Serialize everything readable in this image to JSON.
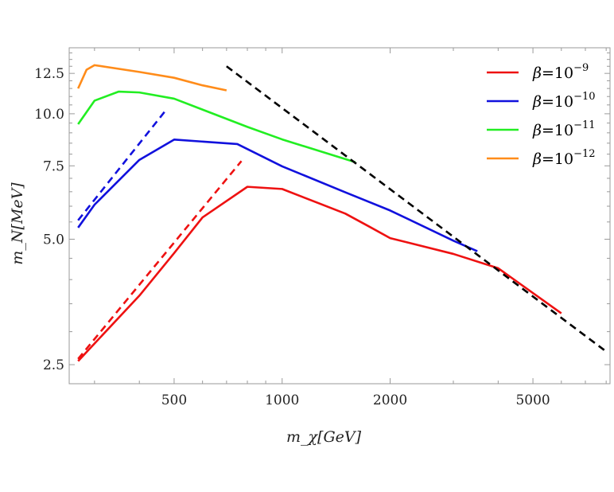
{
  "chart_data": {
    "type": "line",
    "title": "",
    "xlabel": "m_χ[GeV]",
    "ylabel": "m_N[MeV]",
    "x_scale": "log",
    "y_scale": "log",
    "xlim": [
      255,
      8200
    ],
    "ylim": [
      2.25,
      14.4
    ],
    "x_ticks": [
      500,
      1000,
      2000,
      5000
    ],
    "x_tick_labels": [
      "500",
      "1000",
      "2000",
      "5000"
    ],
    "y_ticks": [
      2.5,
      5.0,
      7.5,
      10.0,
      12.5
    ],
    "y_tick_labels": [
      "2.5",
      "5.0",
      "7.5",
      "10.0",
      "12.5"
    ],
    "grid": false,
    "legend_position": "top-right",
    "colors": {
      "red": "#ee1111",
      "blue": "#1111dd",
      "green": "#22ee22",
      "orange": "#ff8c1a",
      "black": "#000000"
    },
    "series": [
      {
        "name": "β=10^{-9}",
        "legend_base": "β=10",
        "legend_exp": "−9",
        "color": "#ee1111",
        "dash": "solid",
        "points": [
          [
            270,
            2.55
          ],
          [
            400,
            3.66
          ],
          [
            500,
            4.63
          ],
          [
            600,
            5.64
          ],
          [
            800,
            6.68
          ],
          [
            1000,
            6.6
          ],
          [
            1500,
            5.76
          ],
          [
            1750,
            5.36
          ],
          [
            2000,
            5.03
          ],
          [
            3000,
            4.61
          ],
          [
            4000,
            4.26
          ],
          [
            6000,
            3.32
          ]
        ]
      },
      {
        "name": "β=10^{-10}",
        "legend_base": "β=10",
        "legend_exp": "−10",
        "color": "#1111dd",
        "dash": "solid",
        "points": [
          [
            270,
            5.33
          ],
          [
            300,
            6.05
          ],
          [
            400,
            7.75
          ],
          [
            500,
            8.67
          ],
          [
            750,
            8.46
          ],
          [
            1000,
            7.48
          ],
          [
            1500,
            6.48
          ],
          [
            2000,
            5.86
          ],
          [
            3000,
            4.96
          ],
          [
            3500,
            4.68
          ]
        ]
      },
      {
        "name": "β=10^{-11}",
        "legend_base": "β=10",
        "legend_exp": "−11",
        "color": "#22ee22",
        "dash": "solid",
        "points": [
          [
            270,
            9.44
          ],
          [
            300,
            10.75
          ],
          [
            350,
            11.3
          ],
          [
            400,
            11.25
          ],
          [
            500,
            10.87
          ],
          [
            800,
            9.3
          ],
          [
            1000,
            8.68
          ],
          [
            1600,
            7.65
          ]
        ]
      },
      {
        "name": "β=10^{-12}",
        "legend_base": "β=10",
        "legend_exp": "−12",
        "color": "#ff8c1a",
        "dash": "solid",
        "points": [
          [
            270,
            11.5
          ],
          [
            285,
            12.75
          ],
          [
            300,
            13.08
          ],
          [
            400,
            12.6
          ],
          [
            500,
            12.2
          ],
          [
            600,
            11.7
          ],
          [
            700,
            11.38
          ]
        ]
      },
      {
        "color": "#1111dd",
        "dash": "dashed",
        "points": [
          [
            270,
            5.55
          ],
          [
            470,
            10.1
          ]
        ]
      },
      {
        "color": "#ee1111",
        "dash": "dashed",
        "points": [
          [
            270,
            2.58
          ],
          [
            770,
            7.7
          ]
        ]
      },
      {
        "color": "#000000",
        "dash": "dashed",
        "points": [
          [
            700,
            13.0
          ],
          [
            7900,
            2.71
          ]
        ]
      }
    ]
  }
}
